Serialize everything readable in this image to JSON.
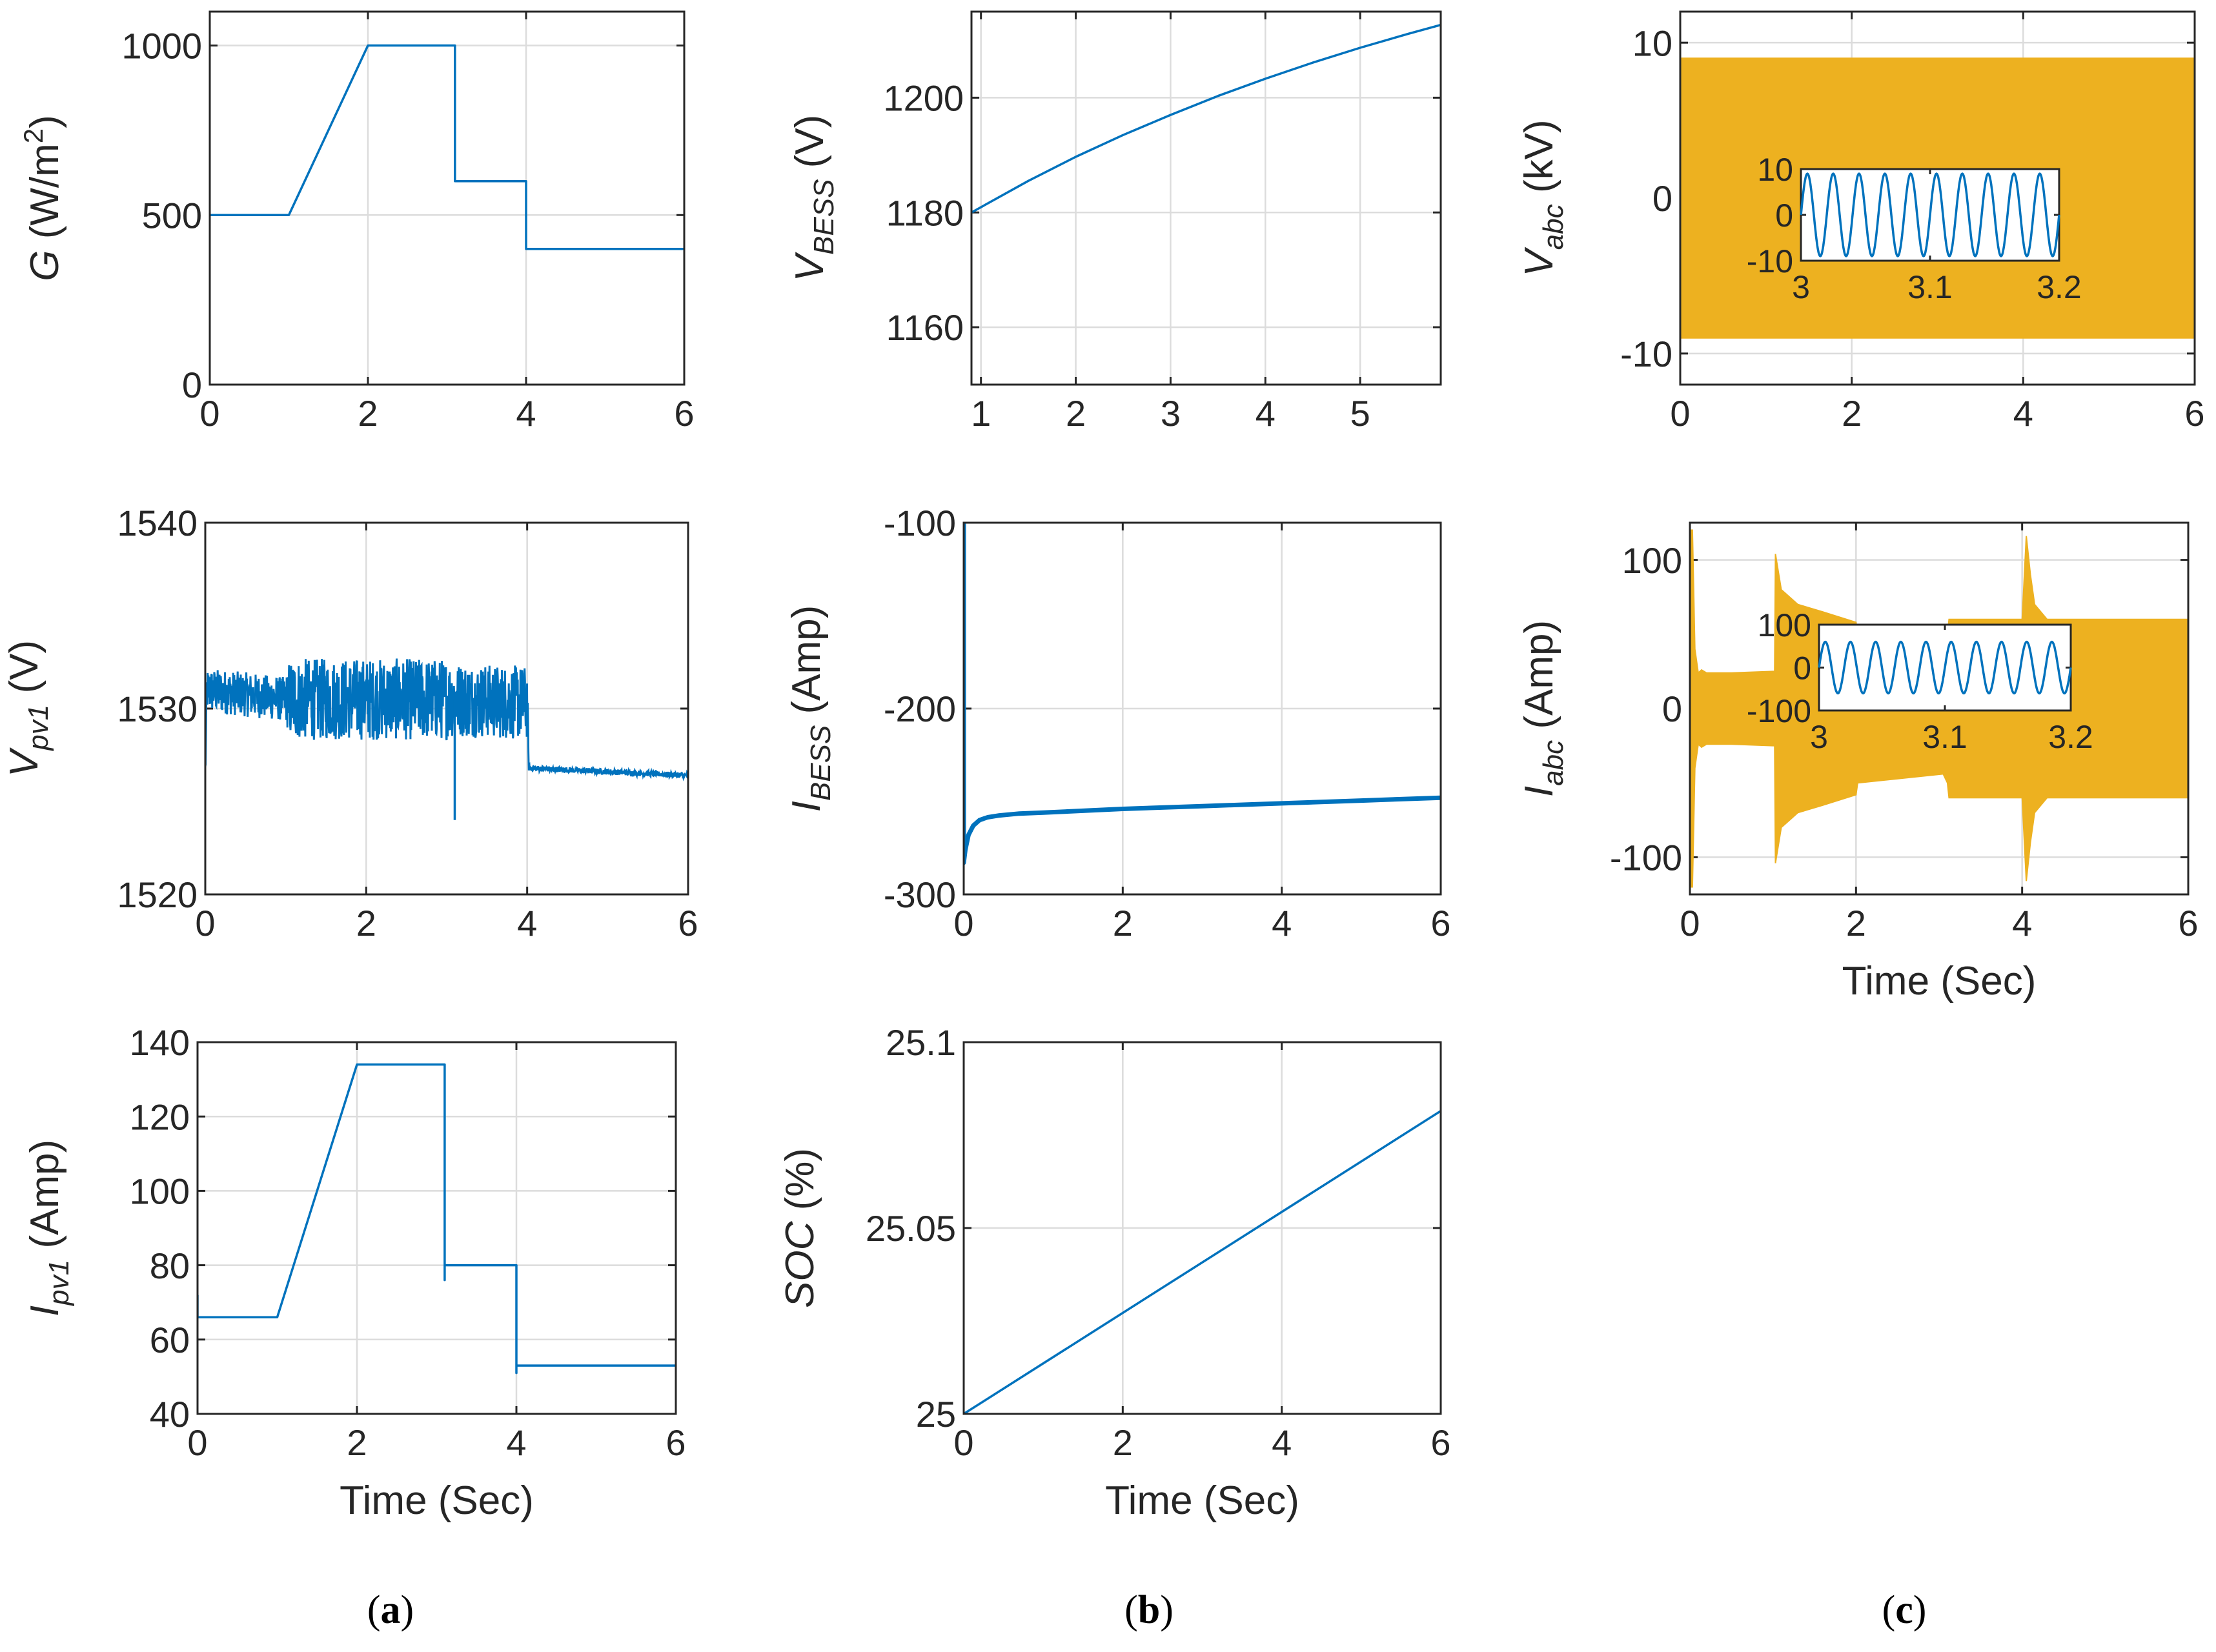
{
  "chart_data": [
    {
      "id": "G",
      "panel": "a",
      "type": "line",
      "ylabel_main": "G",
      "ylabel_sub": "",
      "ylabel_unit": "(W/m",
      "ylabel_sup": "2",
      "ylabel_tail": ")",
      "xlabel": "",
      "xlim": [
        0,
        6
      ],
      "ylim": [
        0,
        1100
      ],
      "xticks": [
        0,
        2,
        4,
        6
      ],
      "yticks": [
        0,
        500,
        1000
      ],
      "x_tick_labels": [
        "0",
        "2",
        "4",
        "6"
      ],
      "y_tick_labels": [
        "0",
        "500",
        "1000"
      ],
      "series": [
        {
          "name": "G",
          "color": "#0072BD",
          "x": [
            0,
            1,
            2,
            3.1,
            3.1,
            4,
            4,
            6
          ],
          "y": [
            500,
            500,
            1000,
            1000,
            600,
            600,
            400,
            400
          ]
        }
      ]
    },
    {
      "id": "Vpv1",
      "panel": "a",
      "type": "line",
      "ylabel_main": "V",
      "ylabel_sub": "pv1",
      "ylabel_unit": "(V)",
      "xlabel": "",
      "xlim": [
        0,
        6
      ],
      "ylim": [
        1520,
        1540
      ],
      "xticks": [
        0,
        2,
        4,
        6
      ],
      "yticks": [
        1520,
        1530,
        1540
      ],
      "x_tick_labels": [
        "0",
        "2",
        "4",
        "6"
      ],
      "y_tick_labels": [
        "1520",
        "1530",
        "1540"
      ],
      "series": [
        {
          "name": "Vpv1",
          "color": "#0072BD",
          "mean": [
            [
              0,
              1526.5
            ],
            [
              0.02,
              1531
            ],
            [
              1,
              1530.5
            ],
            [
              1.5,
              1530.5
            ],
            [
              3,
              1530.5
            ],
            [
              4,
              1530.3
            ],
            [
              4.02,
              1526.8
            ],
            [
              6,
              1526.4
            ]
          ],
          "noise": [
            [
              0,
              1.2
            ],
            [
              1,
              1.2
            ],
            [
              1.05,
              2.2
            ],
            [
              3.0,
              2.2
            ],
            [
              3.1,
              2.0
            ],
            [
              4.0,
              2.0
            ],
            [
              4.02,
              0.15
            ],
            [
              6,
              0.15
            ]
          ],
          "spikes": [
            {
              "x": 3.1,
              "y": 1524
            }
          ]
        }
      ]
    },
    {
      "id": "Ipv1",
      "panel": "a",
      "type": "line",
      "ylabel_main": "I",
      "ylabel_sub": "pv1",
      "ylabel_unit": "(Amp)",
      "xlabel": "Time (Sec)",
      "xlim": [
        0,
        6
      ],
      "ylim": [
        40,
        140
      ],
      "xticks": [
        0,
        2,
        4,
        6
      ],
      "yticks": [
        40,
        60,
        80,
        100,
        120,
        140
      ],
      "x_tick_labels": [
        "0",
        "2",
        "4",
        "6"
      ],
      "y_tick_labels": [
        "40",
        "60",
        "80",
        "100",
        "120",
        "140"
      ],
      "series": [
        {
          "name": "Ipv1",
          "color": "#0072BD",
          "x": [
            0,
            0,
            0.02,
            1,
            2,
            3.1,
            3.1,
            3.1,
            4,
            4,
            4,
            6
          ],
          "y": [
            72,
            66,
            66,
            66,
            134,
            134,
            76,
            80,
            80,
            51,
            53,
            53
          ]
        }
      ]
    },
    {
      "id": "VBESS",
      "panel": "b",
      "type": "line",
      "ylabel_main": "V",
      "ylabel_sub": "BESS",
      "ylabel_unit": "(V)",
      "xlabel": "",
      "xlim": [
        0.9,
        5.85
      ],
      "ylim": [
        1150,
        1215
      ],
      "xticks": [
        1,
        2,
        3,
        4,
        5
      ],
      "yticks": [
        1160,
        1180,
        1200
      ],
      "x_tick_labels": [
        "1",
        "2",
        "3",
        "4",
        "5"
      ],
      "y_tick_labels": [
        "1160",
        "1180",
        "1200"
      ],
      "series": [
        {
          "name": "VBESS",
          "color": "#0072BD",
          "x": [
            0.9,
            1.5,
            2,
            2.5,
            3,
            3.5,
            4,
            4.5,
            5,
            5.5,
            5.85
          ],
          "y": [
            1180,
            1185.5,
            1189.7,
            1193.5,
            1197,
            1200.3,
            1203.3,
            1206.1,
            1208.7,
            1211.1,
            1212.7
          ]
        }
      ]
    },
    {
      "id": "IBESS",
      "panel": "b",
      "type": "line",
      "ylabel_main": "I",
      "ylabel_sub": "BESS",
      "ylabel_unit": "(Amp)",
      "xlabel": "",
      "xlim": [
        0,
        6
      ],
      "ylim": [
        -300,
        -100
      ],
      "xticks": [
        0,
        2,
        4,
        6
      ],
      "yticks": [
        -300,
        -200,
        -100
      ],
      "x_tick_labels": [
        "0",
        "2",
        "4",
        "6"
      ],
      "y_tick_labels": [
        "-300",
        "-200",
        "-100"
      ],
      "series": [
        {
          "name": "IBESS",
          "color": "#0072BD",
          "x": [
            0,
            0,
            0.02,
            0.06,
            0.12,
            0.2,
            0.3,
            0.45,
            0.7,
            1,
            2,
            3,
            4,
            5,
            6
          ],
          "y": [
            -100,
            -283,
            -276,
            -268,
            -263,
            -260,
            -258.5,
            -257.5,
            -256.5,
            -256,
            -254,
            -252.5,
            -251,
            -249.5,
            -248
          ]
        }
      ]
    },
    {
      "id": "SOC",
      "panel": "b",
      "type": "line",
      "ylabel_main": "SOC",
      "ylabel_sub": "",
      "ylabel_unit": "(%)",
      "xlabel": "Time (Sec)",
      "xlim": [
        0,
        6
      ],
      "ylim": [
        25,
        25.1
      ],
      "xticks": [
        0,
        2,
        4,
        6
      ],
      "yticks": [
        25,
        25.05,
        25.1
      ],
      "x_tick_labels": [
        "0",
        "2",
        "4",
        "6"
      ],
      "y_tick_labels": [
        "25",
        "25.05",
        "25.1"
      ],
      "series": [
        {
          "name": "SOC",
          "color": "#0072BD",
          "x": [
            0,
            6
          ],
          "y": [
            25,
            25.0815
          ]
        }
      ]
    },
    {
      "id": "Vabc",
      "panel": "c",
      "type": "area",
      "ylabel_main": "V",
      "ylabel_sub": "abc",
      "ylabel_unit": "(kV)",
      "xlabel": "",
      "xlim": [
        0,
        6
      ],
      "ylim": [
        -12,
        12
      ],
      "xticks": [
        0,
        2,
        4,
        6
      ],
      "yticks": [
        -10,
        0,
        10
      ],
      "x_tick_labels": [
        "0",
        "2",
        "4",
        "6"
      ],
      "y_tick_labels": [
        "-10",
        "0",
        "10"
      ],
      "series": [
        {
          "name": "Vabc envelope",
          "color": "#EDB120",
          "x": [
            0,
            6
          ],
          "upper": [
            9,
            9
          ],
          "lower": [
            -9,
            -9
          ]
        }
      ],
      "inset": {
        "xlim": [
          3,
          3.2
        ],
        "ylim": [
          -10,
          10
        ],
        "xticks": [
          3,
          3.1,
          3.2
        ],
        "yticks": [
          -10,
          0,
          10
        ],
        "x_tick_labels": [
          "3",
          "3.1",
          "3.2"
        ],
        "y_tick_labels": [
          "-10",
          "0",
          "10"
        ],
        "amplitude": 9,
        "frequency_hz": 50,
        "color": "#0072BD"
      }
    },
    {
      "id": "Iabc",
      "panel": "c",
      "type": "area",
      "ylabel_main": "I",
      "ylabel_sub": "abc",
      "ylabel_unit": "(Amp)",
      "xlabel": "Time (Sec)",
      "xlim": [
        0,
        6
      ],
      "ylim": [
        -125,
        125
      ],
      "xticks": [
        0,
        2,
        4,
        6
      ],
      "yticks": [
        -100,
        0,
        100
      ],
      "x_tick_labels": [
        "0",
        "2",
        "4",
        "6"
      ],
      "y_tick_labels": [
        "-100",
        "0",
        "100"
      ],
      "series": [
        {
          "name": "Iabc envelope",
          "color": "#EDB120",
          "x": [
            0,
            0.03,
            0.06,
            0.1,
            0.14,
            0.2,
            0.5,
            1.0,
            1.02,
            1.03,
            1.1,
            1.3,
            1.6,
            2.0,
            2.02,
            3.05,
            3.1,
            3.12,
            3.3,
            3.9,
            4.0,
            4.05,
            4.1,
            4.15,
            4.3,
            6.0
          ],
          "upper": [
            120,
            120,
            40,
            24,
            26,
            24,
            24,
            25,
            25,
            104,
            80,
            70,
            65,
            58,
            50,
            44,
            50,
            60,
            60,
            60,
            60,
            116,
            90,
            70,
            60,
            60
          ],
          "lower": [
            -120,
            -120,
            -40,
            -24,
            -26,
            -24,
            -24,
            -25,
            -25,
            -104,
            -80,
            -70,
            -65,
            -58,
            -50,
            -44,
            -50,
            -60,
            -60,
            -60,
            -60,
            -116,
            -90,
            -70,
            -60,
            -60
          ]
        }
      ],
      "inset": {
        "xlim": [
          3,
          3.2
        ],
        "ylim": [
          -100,
          100
        ],
        "xticks": [
          3,
          3.1,
          3.2
        ],
        "yticks": [
          -100,
          0,
          100
        ],
        "x_tick_labels": [
          "3",
          "3.1",
          "3.2"
        ],
        "y_tick_labels": [
          "-100",
          "0",
          "100"
        ],
        "amplitude": 60,
        "frequency_hz": 50,
        "color": "#0072BD"
      }
    }
  ],
  "captions": {
    "a": {
      "open": "(",
      "letter": "a",
      "close": ")"
    },
    "b": {
      "open": "(",
      "letter": "b",
      "close": ")"
    },
    "c": {
      "open": "(",
      "letter": "c",
      "close": ")"
    }
  }
}
